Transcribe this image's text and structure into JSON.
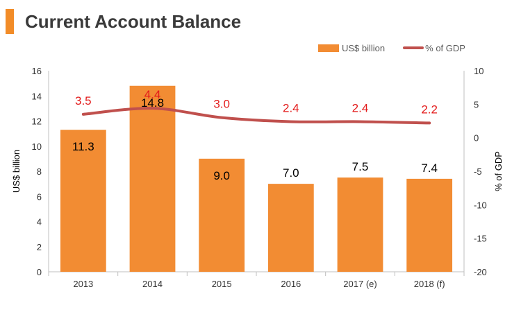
{
  "header": {
    "title": "Current Account Balance"
  },
  "colors": {
    "accent": "#F28C28",
    "bar": "#F28C33",
    "line": "#C0504D",
    "line_label": "#E31B1B",
    "bar_label": "#000000",
    "axis_text": "#333333"
  },
  "chart_data": {
    "type": "bar",
    "title": "Current Account Balance",
    "categories": [
      "2013",
      "2014",
      "2015",
      "2016",
      "2017 (e)",
      "2018 (f)"
    ],
    "series": [
      {
        "name": "US$ billion",
        "type": "bar",
        "axis": "left",
        "values": [
          11.3,
          14.8,
          9.0,
          7.0,
          7.5,
          7.4
        ],
        "labels": [
          "11.3",
          "14.8",
          "9.0",
          "7.0",
          "7.5",
          "7.4"
        ]
      },
      {
        "name": "% of GDP",
        "type": "line",
        "axis": "right",
        "values": [
          3.5,
          4.4,
          3.0,
          2.4,
          2.4,
          2.2
        ],
        "labels": [
          "3.5",
          "4.4",
          "3.0",
          "2.4",
          "2.4",
          "2.2"
        ]
      }
    ],
    "ylabel": "US$ billion",
    "y2label": "% of GDP",
    "ylim": [
      0,
      16
    ],
    "y2lim": [
      -20,
      10
    ],
    "yticks": [
      "0",
      "2",
      "4",
      "6",
      "8",
      "10",
      "12",
      "14",
      "16"
    ],
    "y2ticks": [
      "-20",
      "-15",
      "-10",
      "-5",
      "0",
      "5",
      "10"
    ],
    "legend_position": "top-right",
    "grid": false
  }
}
